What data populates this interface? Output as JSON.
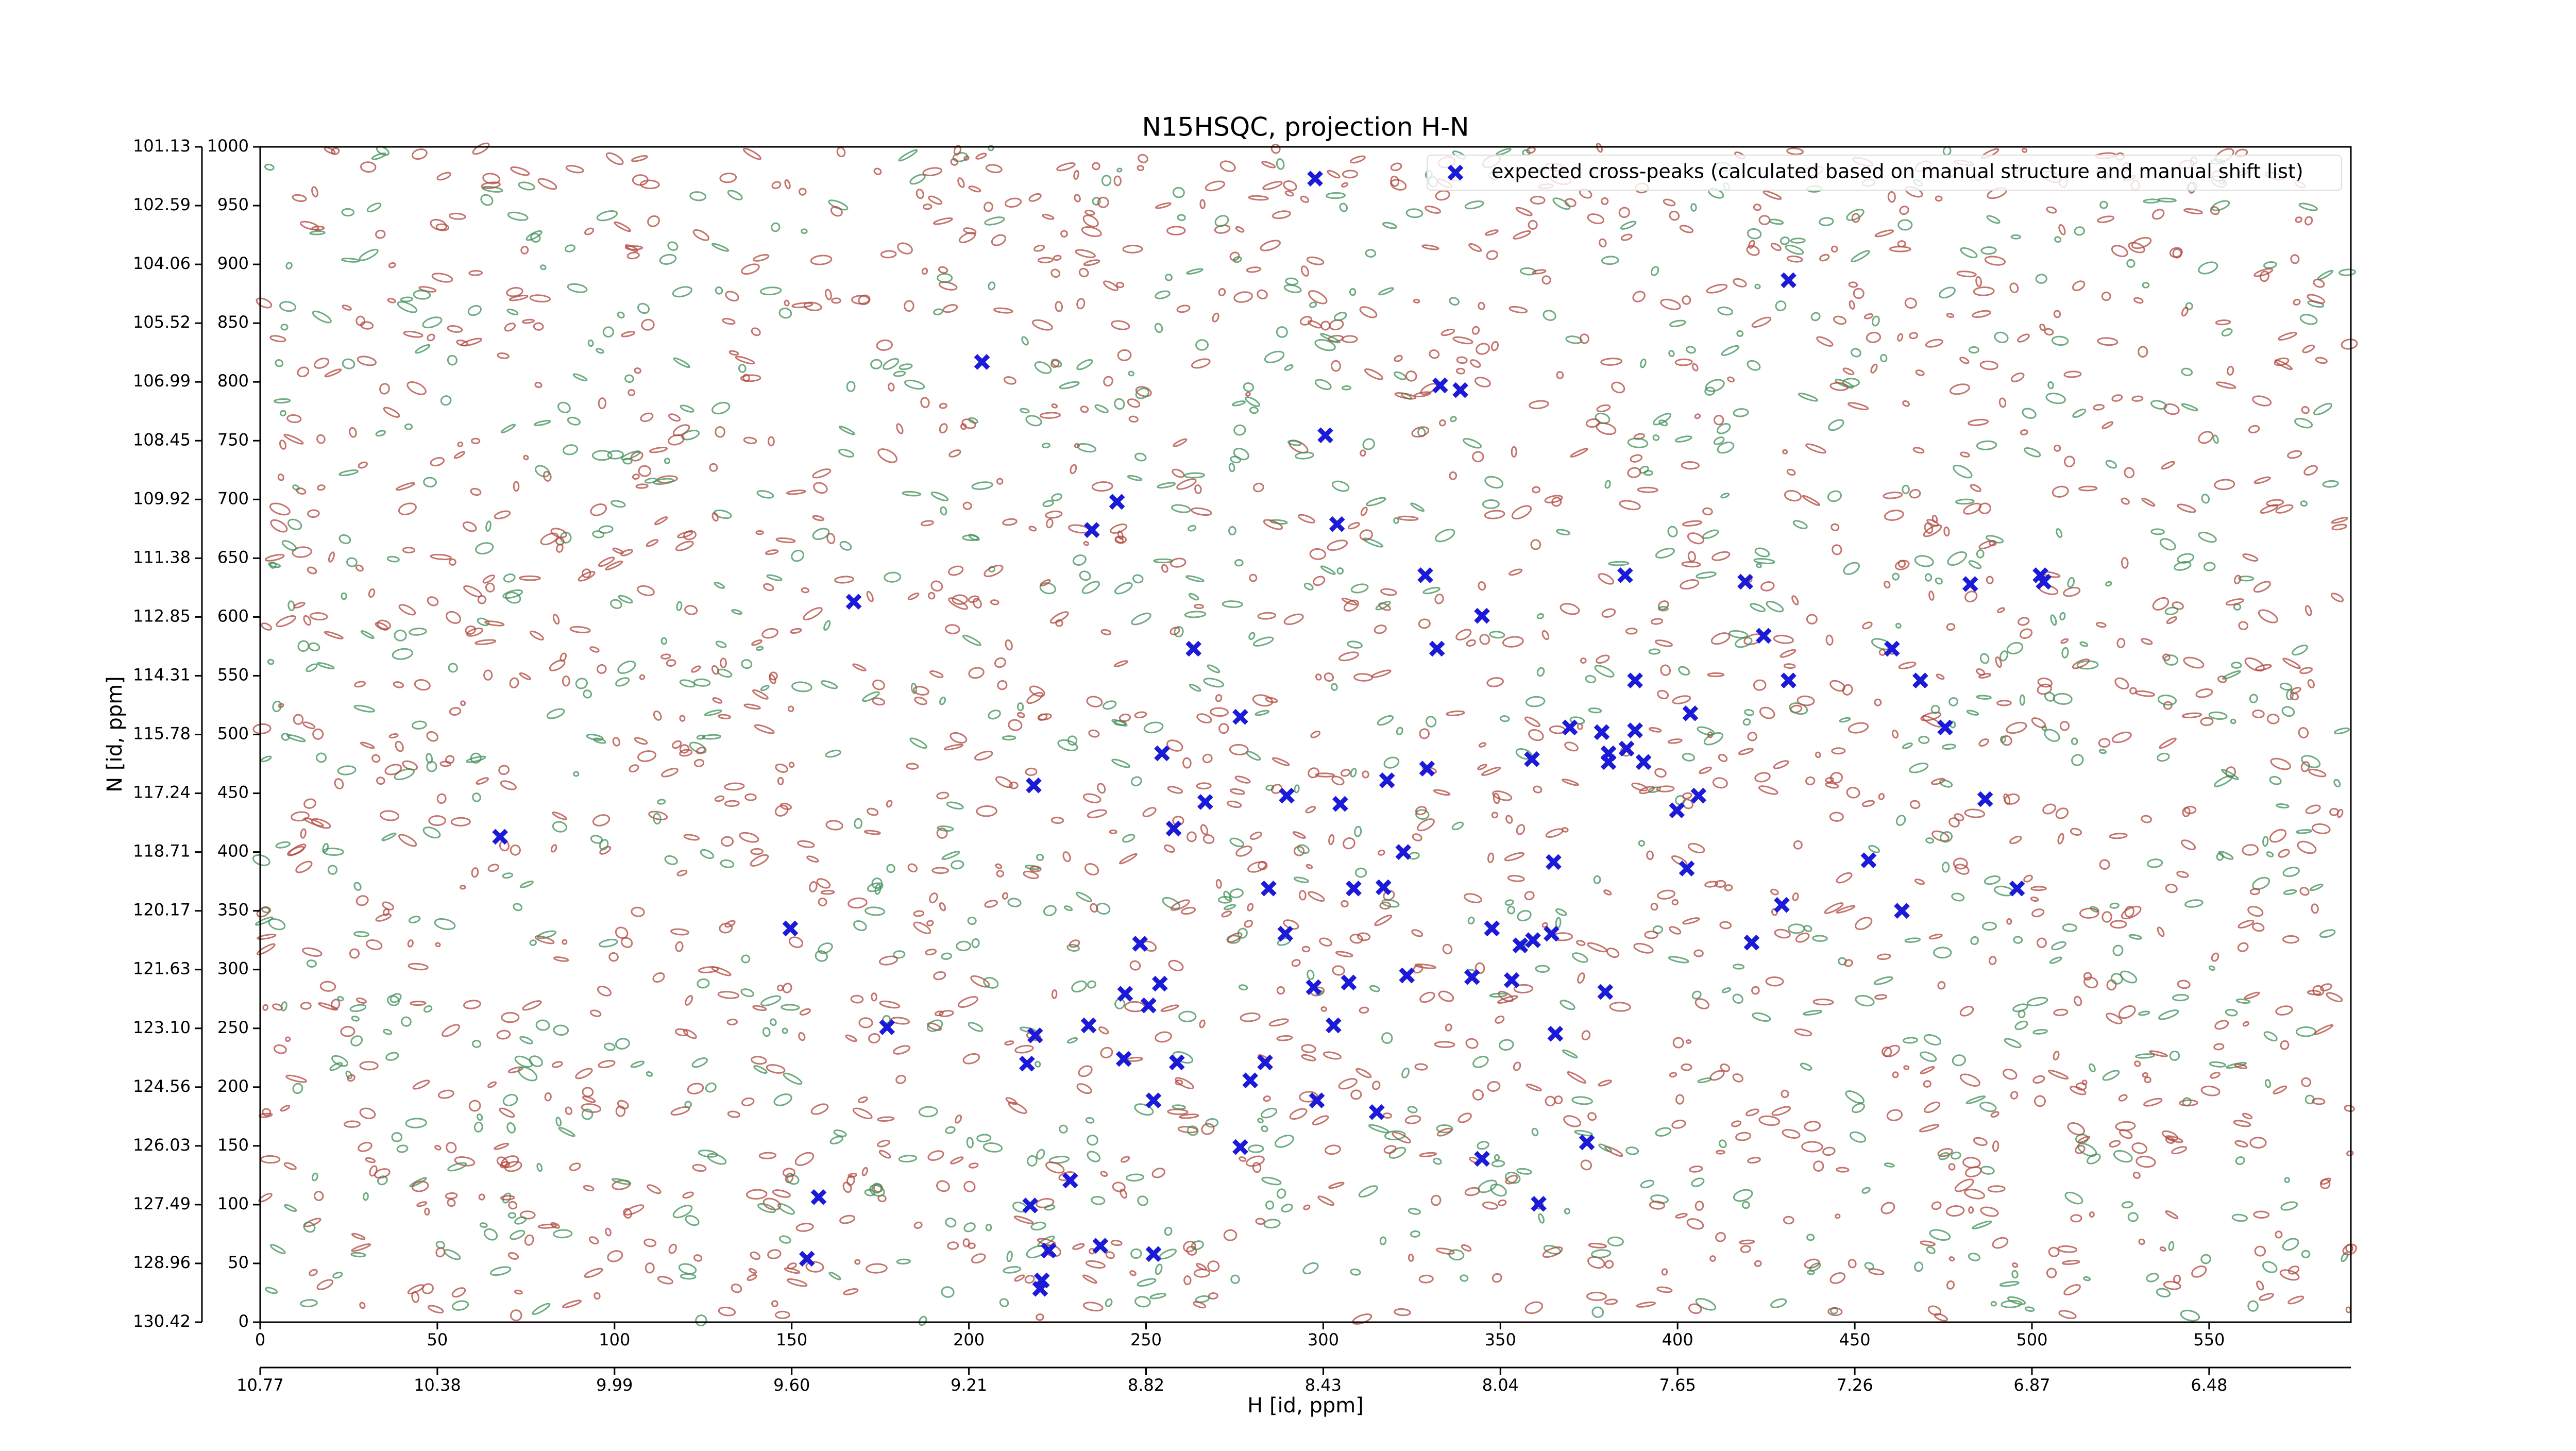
{
  "chart_data": {
    "type": "scatter",
    "title": "N15HSQC, projection H-N",
    "x_label": "H [id, ppm]",
    "y_label": "N [id, ppm]",
    "xlim": [
      0,
      590
    ],
    "ylim": [
      0,
      1000
    ],
    "xticks": [
      0,
      50,
      100,
      150,
      200,
      250,
      300,
      350,
      400,
      450,
      500,
      550
    ],
    "yticks": [
      0,
      50,
      100,
      150,
      200,
      250,
      300,
      350,
      400,
      450,
      500,
      550,
      600,
      650,
      700,
      750,
      800,
      850,
      900,
      950,
      1000
    ],
    "x2ticks": [
      {
        "value": 0,
        "label": "10.77"
      },
      {
        "value": 50,
        "label": "10.38"
      },
      {
        "value": 100,
        "label": "9.99"
      },
      {
        "value": 150,
        "label": "9.60"
      },
      {
        "value": 200,
        "label": "9.21"
      },
      {
        "value": 250,
        "label": "8.82"
      },
      {
        "value": 300,
        "label": "8.43"
      },
      {
        "value": 350,
        "label": "8.04"
      },
      {
        "value": 400,
        "label": "7.65"
      },
      {
        "value": 450,
        "label": "7.26"
      },
      {
        "value": 500,
        "label": "6.87"
      },
      {
        "value": 550,
        "label": "6.48"
      }
    ],
    "y2ticks": [
      {
        "value": 1000,
        "label": "101.13"
      },
      {
        "value": 950,
        "label": "102.59"
      },
      {
        "value": 900,
        "label": "104.06"
      },
      {
        "value": 850,
        "label": "105.52"
      },
      {
        "value": 800,
        "label": "106.99"
      },
      {
        "value": 750,
        "label": "108.45"
      },
      {
        "value": 700,
        "label": "109.92"
      },
      {
        "value": 650,
        "label": "111.38"
      },
      {
        "value": 600,
        "label": "112.85"
      },
      {
        "value": 550,
        "label": "114.31"
      },
      {
        "value": 500,
        "label": "115.78"
      },
      {
        "value": 450,
        "label": "117.24"
      },
      {
        "value": 400,
        "label": "118.71"
      },
      {
        "value": 350,
        "label": "120.17"
      },
      {
        "value": 300,
        "label": "121.63"
      },
      {
        "value": 250,
        "label": "123.10"
      },
      {
        "value": 200,
        "label": "124.56"
      },
      {
        "value": 150,
        "label": "126.03"
      },
      {
        "value": 100,
        "label": "127.49"
      },
      {
        "value": 50,
        "label": "128.96"
      },
      {
        "value": 0,
        "label": "130.42"
      }
    ],
    "legend": "upper right",
    "series": [
      {
        "name": "expected cross-peaks (calculated based on manual structure and manual shift list)",
        "color": "#1a1ad8",
        "x": [
          297.7,
          431.3,
          203.7,
          333,
          338.7,
          300.6,
          241.8,
          234.7,
          303.9,
          167.5,
          328.8,
          385.2,
          419.1,
          482.6,
          502.4,
          503.3,
          344.8,
          424.3,
          263.4,
          332.1,
          460.5,
          388,
          431.3,
          468.5,
          276.6,
          403.6,
          369.6,
          378.6,
          388,
          475.5,
          254.5,
          380.5,
          385.6,
          390.4,
          358.9,
          380.5,
          329.3,
          218.3,
          318,
          266.7,
          289.7,
          304.8,
          405.9,
          486.8,
          399.8,
          67.7,
          257.8,
          322.6,
          365,
          402.6,
          453.9,
          284.6,
          308.6,
          317,
          495.8,
          429.4,
          463.3,
          149.6,
          347.6,
          289.3,
          364.4,
          359.2,
          355.6,
          248.3,
          420.9,
          323.6,
          342,
          353.2,
          253.9,
          307.2,
          297.3,
          244.1,
          379.6,
          250.7,
          176.9,
          218.7,
          233.8,
          302.9,
          365.5,
          216.4,
          243.7,
          258.7,
          283.6,
          279.4,
          252.1,
          298.2,
          315.1,
          276.6,
          374.4,
          344.8,
          228.6,
          157.6,
          217.3,
          360.8,
          237.1,
          222.5,
          252.1,
          154.3,
          220.6,
          220.1
        ],
        "values": [
          973,
          886.5,
          817,
          797,
          793,
          754.6,
          698,
          674,
          679,
          613,
          635.5,
          635.5,
          630,
          628,
          635.5,
          630,
          601,
          584,
          573,
          573,
          573,
          546,
          546,
          546,
          515,
          518,
          506,
          502,
          503.5,
          506,
          484,
          484,
          488,
          476.6,
          479,
          476.6,
          471,
          456.7,
          461,
          442.6,
          448,
          441,
          448,
          445,
          435.5,
          413,
          420,
          400,
          391.5,
          386,
          393,
          369,
          369,
          370,
          369,
          355,
          350,
          335,
          335,
          330.5,
          330.5,
          325,
          320.6,
          322,
          323,
          295,
          293.6,
          291,
          288,
          289,
          285,
          279.4,
          281,
          269.5,
          251,
          244,
          252.5,
          252.5,
          245.4,
          220,
          224,
          221,
          221,
          205.7,
          188.7,
          188.7,
          178.7,
          149,
          153,
          139,
          120.6,
          106.4,
          99.3,
          100.7,
          65,
          61,
          58,
          54,
          35.5,
          28.4
        ]
      }
    ]
  }
}
